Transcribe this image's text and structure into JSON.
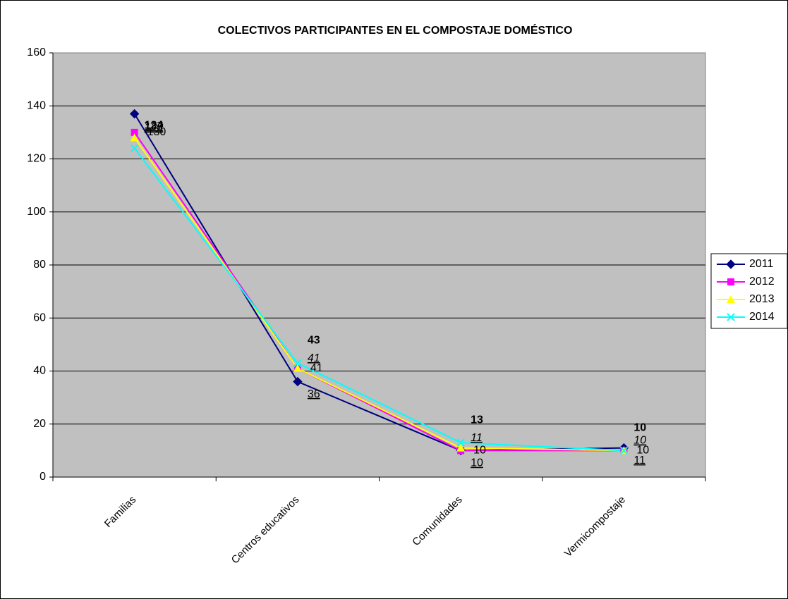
{
  "chart_data": {
    "type": "line",
    "title": "COLECTIVOS PARTICIPANTES EN EL COMPOSTAJE DOMÉSTICO",
    "categories": [
      "Familias",
      "Centros educativos",
      "Comunidades",
      "Vermicompostaje"
    ],
    "series": [
      {
        "name": "2011",
        "color": "#000080",
        "values": [
          137,
          36,
          10,
          11
        ]
      },
      {
        "name": "2012",
        "color": "#ff00ff",
        "values": [
          130,
          41,
          10,
          10
        ]
      },
      {
        "name": "2013",
        "color": "#ffff00",
        "values": [
          128,
          41,
          11,
          10
        ]
      },
      {
        "name": "2014",
        "color": "#00ffff",
        "values": [
          124,
          43,
          13,
          10
        ]
      }
    ],
    "ylim": [
      0,
      160
    ],
    "yticks": [
      0,
      20,
      40,
      60,
      80,
      100,
      120,
      140,
      160
    ],
    "grid": true,
    "legend": "right"
  }
}
